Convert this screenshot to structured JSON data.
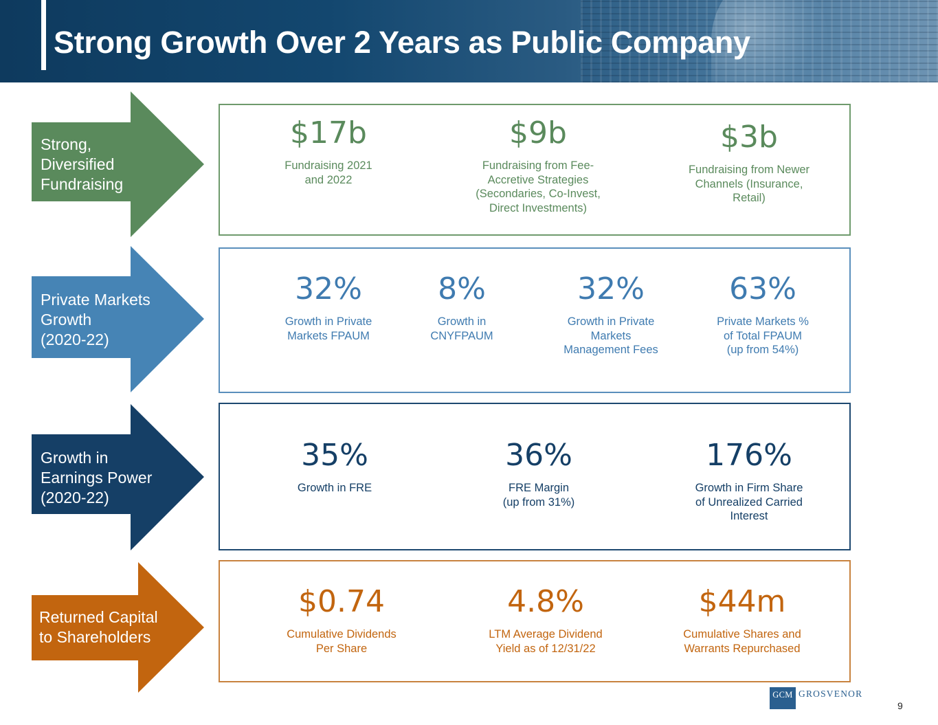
{
  "header": {
    "title": "Strong Growth Over 2 Years as Public Company"
  },
  "colors": {
    "green": "#5a8a5c",
    "blue": "#3f7bb0",
    "navy": "#153f66",
    "orange": "#c2650f"
  },
  "rows": [
    {
      "label": [
        "Strong,",
        "Diversified",
        "Fundraising"
      ],
      "stats": [
        {
          "value": "$17b",
          "desc": [
            "Fundraising 2021",
            "and 2022"
          ]
        },
        {
          "value": "$9b",
          "desc": [
            "Fundraising from Fee-",
            "Accretive Strategies",
            "(Secondaries, Co-Invest,",
            "Direct Investments)"
          ]
        },
        {
          "value": "$3b",
          "desc": [
            "Fundraising from Newer",
            "Channels (Insurance,",
            "Retail)"
          ]
        }
      ]
    },
    {
      "label": [
        "Private Markets",
        "Growth",
        "(2020-22)"
      ],
      "stats": [
        {
          "value": "32%",
          "desc": [
            "Growth in Private",
            "Markets FPAUM"
          ]
        },
        {
          "value": "8%",
          "desc": [
            "Growth in",
            "CNYFPAUM"
          ]
        },
        {
          "value": "32%",
          "desc": [
            "Growth in Private",
            "Markets",
            "Management Fees"
          ]
        },
        {
          "value": "63%",
          "desc": [
            "Private Markets %",
            "of Total FPAUM",
            "(up from 54%)"
          ]
        }
      ]
    },
    {
      "label": [
        "Growth in",
        "Earnings Power",
        "(2020-22)"
      ],
      "stats": [
        {
          "value": "35%",
          "desc": [
            "Growth in FRE"
          ]
        },
        {
          "value": "36%",
          "desc": [
            "FRE Margin",
            "(up from 31%)"
          ]
        },
        {
          "value": "176%",
          "desc": [
            "Growth in Firm Share",
            "of Unrealized Carried",
            "Interest"
          ]
        }
      ]
    },
    {
      "label": [
        "Returned Capital",
        "to Shareholders"
      ],
      "stats": [
        {
          "value": "$0.74",
          "desc": [
            "Cumulative Dividends",
            "Per Share"
          ]
        },
        {
          "value": "4.8%",
          "desc": [
            "LTM Average Dividend",
            "Yield as of 12/31/22"
          ]
        },
        {
          "value": "$44m",
          "desc": [
            "Cumulative Shares and",
            "Warrants Repurchased"
          ]
        }
      ]
    }
  ],
  "logo": {
    "mark": "GCM",
    "word": "GROSVENOR"
  },
  "page_number": "9"
}
